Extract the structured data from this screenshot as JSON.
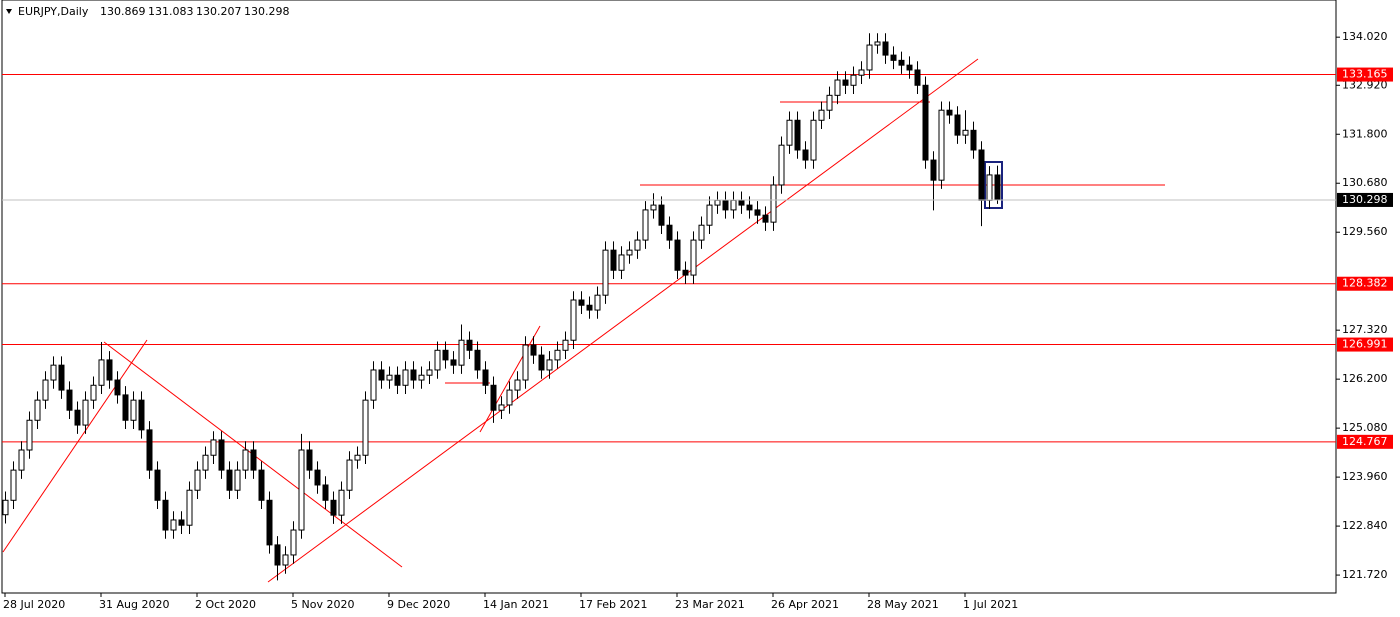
{
  "chart_data": {
    "type": "candlestick",
    "symbol": "EURJPY,Daily",
    "ylim": [
      121.31,
      134.87
    ],
    "yticks": [
      {
        "value": 134.02,
        "label": "134.020"
      },
      {
        "value": 132.92,
        "label": "132.920"
      },
      {
        "value": 131.8,
        "label": "131.800"
      },
      {
        "value": 130.68,
        "label": "130.680"
      },
      {
        "value": 129.56,
        "label": "129.560"
      },
      {
        "value": 127.32,
        "label": "127.320"
      },
      {
        "value": 126.2,
        "label": "126.200"
      },
      {
        "value": 125.08,
        "label": "125.080"
      },
      {
        "value": 123.96,
        "label": "123.960"
      },
      {
        "value": 122.84,
        "label": "122.840"
      },
      {
        "value": 121.72,
        "label": "121.720"
      }
    ],
    "hlines": [
      133.165,
      128.382,
      126.991,
      124.767
    ],
    "hline_color": "#ff0000",
    "up_color": "#ffffff",
    "down_color": "#000000",
    "categories": [
      "28 Jul 2020",
      null,
      null,
      null,
      null,
      null,
      null,
      null,
      null,
      null,
      null,
      null,
      "31 Aug 2020",
      null,
      null,
      null,
      null,
      null,
      null,
      null,
      null,
      null,
      null,
      null,
      "2 Oct 2020",
      null,
      null,
      null,
      null,
      null,
      null,
      null,
      null,
      null,
      null,
      null,
      "5 Nov 2020",
      null,
      null,
      null,
      null,
      null,
      null,
      null,
      null,
      null,
      null,
      null,
      "9 Dec 2020",
      null,
      null,
      null,
      null,
      null,
      null,
      null,
      null,
      null,
      null,
      null,
      "14 Jan 2021",
      null,
      null,
      null,
      null,
      null,
      null,
      null,
      null,
      null,
      null,
      null,
      "17 Feb 2021",
      null,
      null,
      null,
      null,
      null,
      null,
      null,
      null,
      null,
      null,
      null,
      "23 Mar 2021",
      null,
      null,
      null,
      null,
      null,
      null,
      null,
      null,
      null,
      null,
      null,
      "26 Apr 2021",
      null,
      null,
      null,
      null,
      null,
      null,
      null,
      null,
      null,
      null,
      null,
      "28 May 2021",
      null,
      null,
      null,
      null,
      null,
      null,
      null,
      null,
      null,
      null,
      null,
      "1 Jul 2021",
      null,
      null,
      null,
      null
    ],
    "candles": [
      [
        123.1,
        123.63,
        122.9,
        123.43
      ],
      [
        123.43,
        124.32,
        123.23,
        124.12
      ],
      [
        124.12,
        124.78,
        123.92,
        124.58
      ],
      [
        124.58,
        125.46,
        124.38,
        125.26
      ],
      [
        125.26,
        125.92,
        125.06,
        125.72
      ],
      [
        125.72,
        126.38,
        125.52,
        126.18
      ],
      [
        126.18,
        126.72,
        125.98,
        126.52
      ],
      [
        126.52,
        126.72,
        125.75,
        125.95
      ],
      [
        125.95,
        126.15,
        125.29,
        125.49
      ],
      [
        125.49,
        125.69,
        124.95,
        125.15
      ],
      [
        125.15,
        125.92,
        124.95,
        125.72
      ],
      [
        125.72,
        126.26,
        125.52,
        126.06
      ],
      [
        126.06,
        127.05,
        125.86,
        126.64
      ],
      [
        126.64,
        126.84,
        125.98,
        126.18
      ],
      [
        126.18,
        126.38,
        125.64,
        125.84
      ],
      [
        125.84,
        126.04,
        125.06,
        125.26
      ],
      [
        125.26,
        125.92,
        125.06,
        125.72
      ],
      [
        125.72,
        125.92,
        124.84,
        125.04
      ],
      [
        125.04,
        125.24,
        123.92,
        124.12
      ],
      [
        124.12,
        124.32,
        123.23,
        123.43
      ],
      [
        123.43,
        123.63,
        122.55,
        122.75
      ],
      [
        122.75,
        123.18,
        122.55,
        122.98
      ],
      [
        122.98,
        123.18,
        122.66,
        122.86
      ],
      [
        122.86,
        123.86,
        122.66,
        123.66
      ],
      [
        123.66,
        124.32,
        123.46,
        124.12
      ],
      [
        124.12,
        124.66,
        123.92,
        124.46
      ],
      [
        124.46,
        125.01,
        124.26,
        124.81
      ],
      [
        124.81,
        125.01,
        123.92,
        124.12
      ],
      [
        124.12,
        124.32,
        123.46,
        123.66
      ],
      [
        123.66,
        124.32,
        123.46,
        124.12
      ],
      [
        124.12,
        124.78,
        123.92,
        124.58
      ],
      [
        124.58,
        124.78,
        123.92,
        124.12
      ],
      [
        124.12,
        124.32,
        123.23,
        123.43
      ],
      [
        123.43,
        123.63,
        122.21,
        122.41
      ],
      [
        122.41,
        122.61,
        121.6,
        121.95
      ],
      [
        121.95,
        122.38,
        121.75,
        122.18
      ],
      [
        122.18,
        122.95,
        121.98,
        122.75
      ],
      [
        122.75,
        124.95,
        122.55,
        124.58
      ],
      [
        124.58,
        124.78,
        123.92,
        124.12
      ],
      [
        124.12,
        124.32,
        123.58,
        123.78
      ],
      [
        123.78,
        123.98,
        123.23,
        123.43
      ],
      [
        123.43,
        123.63,
        122.89,
        123.09
      ],
      [
        123.09,
        123.86,
        122.89,
        123.66
      ],
      [
        123.66,
        124.55,
        123.46,
        124.35
      ],
      [
        124.35,
        124.66,
        124.15,
        124.46
      ],
      [
        124.46,
        125.92,
        124.26,
        125.72
      ],
      [
        125.72,
        126.61,
        125.52,
        126.41
      ],
      [
        126.41,
        126.61,
        125.98,
        126.18
      ],
      [
        126.18,
        126.49,
        125.98,
        126.29
      ],
      [
        126.29,
        126.49,
        125.86,
        126.06
      ],
      [
        126.06,
        126.61,
        125.86,
        126.41
      ],
      [
        126.41,
        126.61,
        125.98,
        126.18
      ],
      [
        126.18,
        126.49,
        125.98,
        126.29
      ],
      [
        126.29,
        126.61,
        126.09,
        126.41
      ],
      [
        126.41,
        127.06,
        126.21,
        126.86
      ],
      [
        126.86,
        127.06,
        126.44,
        126.64
      ],
      [
        126.64,
        126.84,
        126.32,
        126.52
      ],
      [
        126.52,
        127.45,
        126.32,
        127.09
      ],
      [
        127.09,
        127.29,
        126.66,
        126.86
      ],
      [
        126.86,
        127.06,
        126.21,
        126.41
      ],
      [
        126.41,
        126.61,
        125.86,
        126.06
      ],
      [
        126.06,
        126.26,
        125.2,
        125.49
      ],
      [
        125.49,
        125.81,
        125.29,
        125.61
      ],
      [
        125.61,
        126.15,
        125.41,
        125.95
      ],
      [
        125.95,
        126.38,
        125.75,
        126.18
      ],
      [
        126.18,
        127.18,
        125.98,
        126.98
      ],
      [
        126.98,
        127.18,
        126.55,
        126.75
      ],
      [
        126.75,
        126.95,
        126.21,
        126.41
      ],
      [
        126.41,
        126.84,
        126.21,
        126.64
      ],
      [
        126.64,
        127.06,
        126.44,
        126.86
      ],
      [
        126.86,
        127.29,
        126.66,
        127.09
      ],
      [
        127.09,
        128.21,
        126.89,
        128.01
      ],
      [
        128.01,
        128.21,
        127.69,
        127.89
      ],
      [
        127.89,
        128.09,
        127.58,
        127.78
      ],
      [
        127.78,
        128.32,
        127.58,
        128.12
      ],
      [
        128.12,
        129.35,
        127.92,
        129.15
      ],
      [
        129.15,
        129.35,
        128.49,
        128.69
      ],
      [
        128.69,
        129.24,
        128.49,
        129.04
      ],
      [
        129.04,
        129.35,
        128.84,
        129.15
      ],
      [
        129.15,
        129.58,
        128.95,
        129.38
      ],
      [
        129.38,
        130.27,
        129.18,
        130.07
      ],
      [
        130.07,
        130.45,
        129.87,
        130.18
      ],
      [
        130.18,
        130.38,
        129.52,
        129.72
      ],
      [
        129.72,
        129.92,
        129.18,
        129.38
      ],
      [
        129.38,
        129.58,
        128.49,
        128.69
      ],
      [
        128.69,
        128.89,
        128.38,
        128.58
      ],
      [
        128.58,
        129.58,
        128.38,
        129.38
      ],
      [
        129.38,
        129.92,
        129.18,
        129.72
      ],
      [
        129.72,
        130.38,
        129.52,
        130.18
      ],
      [
        130.18,
        130.49,
        129.98,
        130.29
      ],
      [
        130.29,
        130.49,
        129.87,
        130.07
      ],
      [
        130.07,
        130.49,
        129.87,
        130.29
      ],
      [
        130.29,
        130.49,
        129.98,
        130.18
      ],
      [
        130.18,
        130.38,
        129.87,
        130.07
      ],
      [
        130.07,
        130.27,
        129.75,
        129.95
      ],
      [
        129.95,
        130.15,
        129.59,
        129.79
      ],
      [
        129.79,
        130.84,
        129.59,
        130.64
      ],
      [
        130.64,
        131.75,
        130.44,
        131.55
      ],
      [
        131.55,
        132.32,
        131.35,
        132.12
      ],
      [
        132.12,
        132.32,
        131.24,
        131.44
      ],
      [
        131.44,
        131.64,
        131.01,
        131.21
      ],
      [
        131.21,
        132.32,
        131.01,
        132.12
      ],
      [
        132.12,
        132.55,
        131.92,
        132.35
      ],
      [
        132.35,
        132.89,
        132.15,
        132.69
      ],
      [
        132.69,
        133.24,
        132.49,
        133.04
      ],
      [
        133.04,
        133.24,
        132.72,
        132.92
      ],
      [
        132.92,
        133.35,
        132.72,
        133.15
      ],
      [
        133.15,
        133.47,
        132.95,
        133.27
      ],
      [
        133.27,
        134.11,
        133.07,
        133.84
      ],
      [
        133.84,
        134.11,
        133.64,
        133.91
      ],
      [
        133.91,
        134.11,
        133.41,
        133.61
      ],
      [
        133.61,
        133.81,
        133.29,
        133.49
      ],
      [
        133.49,
        133.69,
        133.18,
        133.38
      ],
      [
        133.38,
        133.58,
        133.07,
        133.27
      ],
      [
        133.27,
        133.47,
        132.72,
        132.92
      ],
      [
        132.92,
        133.12,
        131.01,
        131.21
      ],
      [
        131.21,
        131.41,
        130.06,
        130.75
      ],
      [
        130.75,
        132.55,
        130.55,
        132.35
      ],
      [
        132.35,
        132.55,
        132.04,
        132.24
      ],
      [
        132.24,
        132.44,
        131.58,
        131.78
      ],
      [
        131.78,
        132.35,
        131.58,
        131.89
      ],
      [
        131.89,
        132.09,
        131.24,
        131.44
      ],
      [
        131.44,
        131.64,
        129.7,
        130.29
      ],
      [
        130.29,
        131.07,
        130.09,
        130.87
      ],
      [
        130.869,
        131.083,
        130.207,
        130.298
      ]
    ]
  }
}
